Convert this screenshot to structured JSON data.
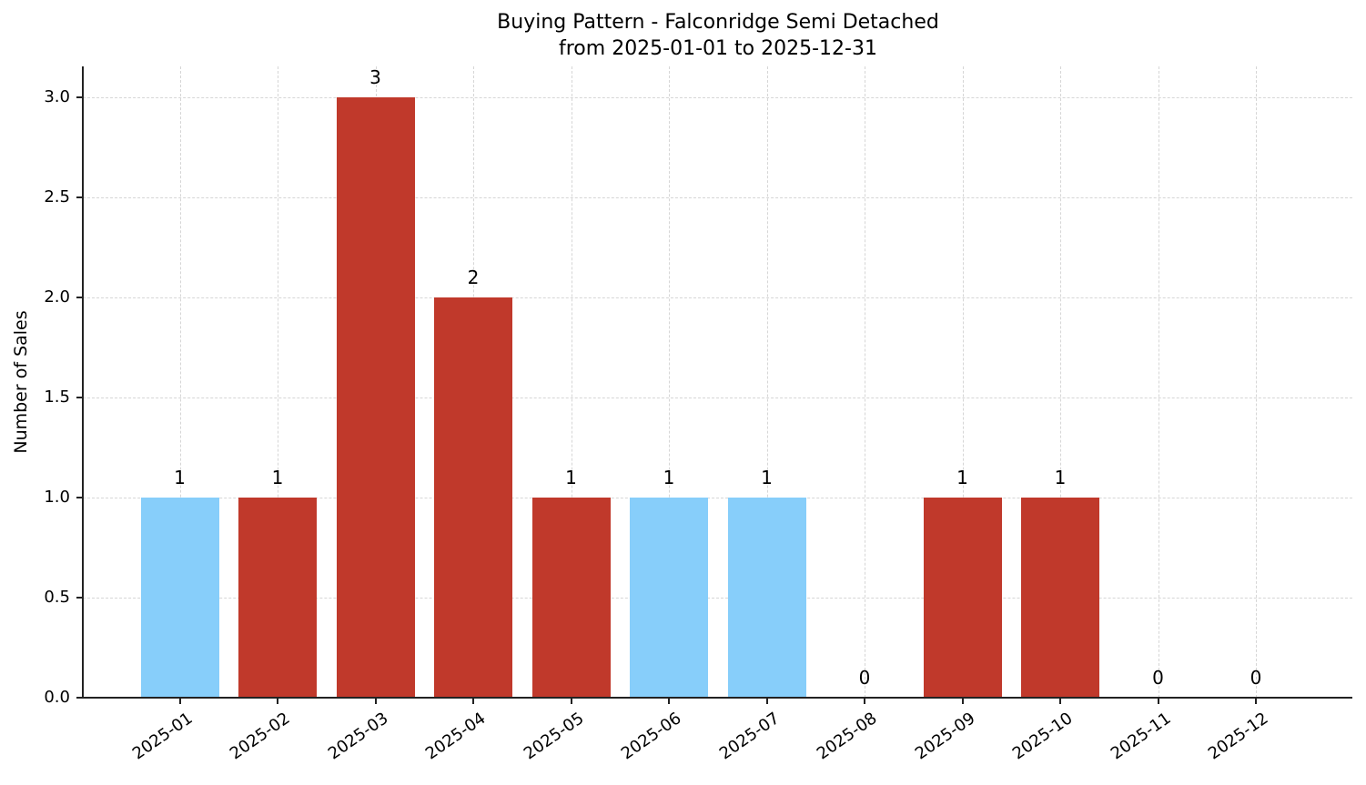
{
  "chart_data": {
    "type": "bar",
    "title": "Buying Pattern - Falconridge Semi Detached",
    "subtitle": "from 2025-01-01 to 2025-12-31",
    "xlabel": "",
    "ylabel": "Number of Sales",
    "ylim": [
      0,
      3.15
    ],
    "yticks": [
      "0.0",
      "0.5",
      "1.0",
      "1.5",
      "2.0",
      "2.5",
      "3.0"
    ],
    "grid": true,
    "legend": null,
    "categories": [
      "2025-01",
      "2025-02",
      "2025-03",
      "2025-04",
      "2025-05",
      "2025-06",
      "2025-07",
      "2025-08",
      "2025-09",
      "2025-10",
      "2025-11",
      "2025-12"
    ],
    "values": [
      1,
      1,
      3,
      2,
      1,
      1,
      1,
      0,
      1,
      1,
      0,
      0
    ],
    "value_labels": [
      "1",
      "1",
      "3",
      "2",
      "1",
      "1",
      "1",
      "0",
      "1",
      "1",
      "0",
      "0"
    ],
    "bar_colors": [
      "#87CEFA",
      "#C0392B",
      "#C0392B",
      "#C0392B",
      "#C0392B",
      "#87CEFA",
      "#87CEFA",
      "#C0392B",
      "#C0392B",
      "#C0392B",
      "#C0392B",
      "#C0392B"
    ]
  },
  "colors": {
    "light_blue": "#87CEFA",
    "red": "#C0392B",
    "axis": "#222222",
    "grid": "#D6D6D6"
  }
}
